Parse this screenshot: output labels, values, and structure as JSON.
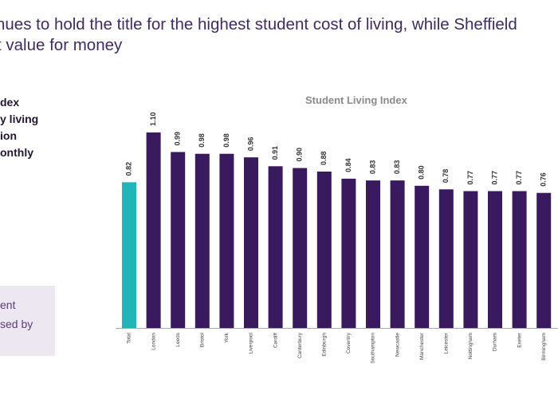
{
  "headline": {
    "line1": "nues to hold the title for the highest student cost of living, while Sheffield",
    "line2": "t value for money"
  },
  "left_text": [
    "dex",
    "y living",
    "ion",
    "onthly"
  ],
  "callout": {
    "line1": "ent",
    "line2": "sed by"
  },
  "chart_data": {
    "type": "bar",
    "title": "Student Living Index",
    "xlabel": "",
    "ylabel": "",
    "ylim": [
      0,
      1.1
    ],
    "categories": [
      "Total",
      "London",
      "Leeds",
      "Bristol",
      "York",
      "Liverpool",
      "Cardiff",
      "Canterbury",
      "Edinburgh",
      "Coventry",
      "Southampton",
      "Newcastle",
      "Manchester",
      "Leicester",
      "Nottingham",
      "Durham",
      "Exeter",
      "Birmingham"
    ],
    "values": [
      0.82,
      1.1,
      0.99,
      0.98,
      0.98,
      0.96,
      0.91,
      0.9,
      0.88,
      0.84,
      0.83,
      0.83,
      0.8,
      0.78,
      0.77,
      0.77,
      0.77,
      0.76
    ],
    "labels": [
      "0.82",
      "1.10",
      "0.99",
      "0.98",
      "0.98",
      "0.96",
      "0.91",
      "0.90",
      "0.88",
      "0.84",
      "0.83",
      "0.83",
      "0.80",
      "0.78",
      "0.77",
      "0.77",
      "0.77",
      "0.76"
    ],
    "colors": {
      "highlight": "#1fb5b9",
      "bar": "#3a1a5e",
      "baseline": "#aaaaaa",
      "label": "#333333"
    },
    "highlight_index": 0,
    "grid": false,
    "legend": "none"
  }
}
